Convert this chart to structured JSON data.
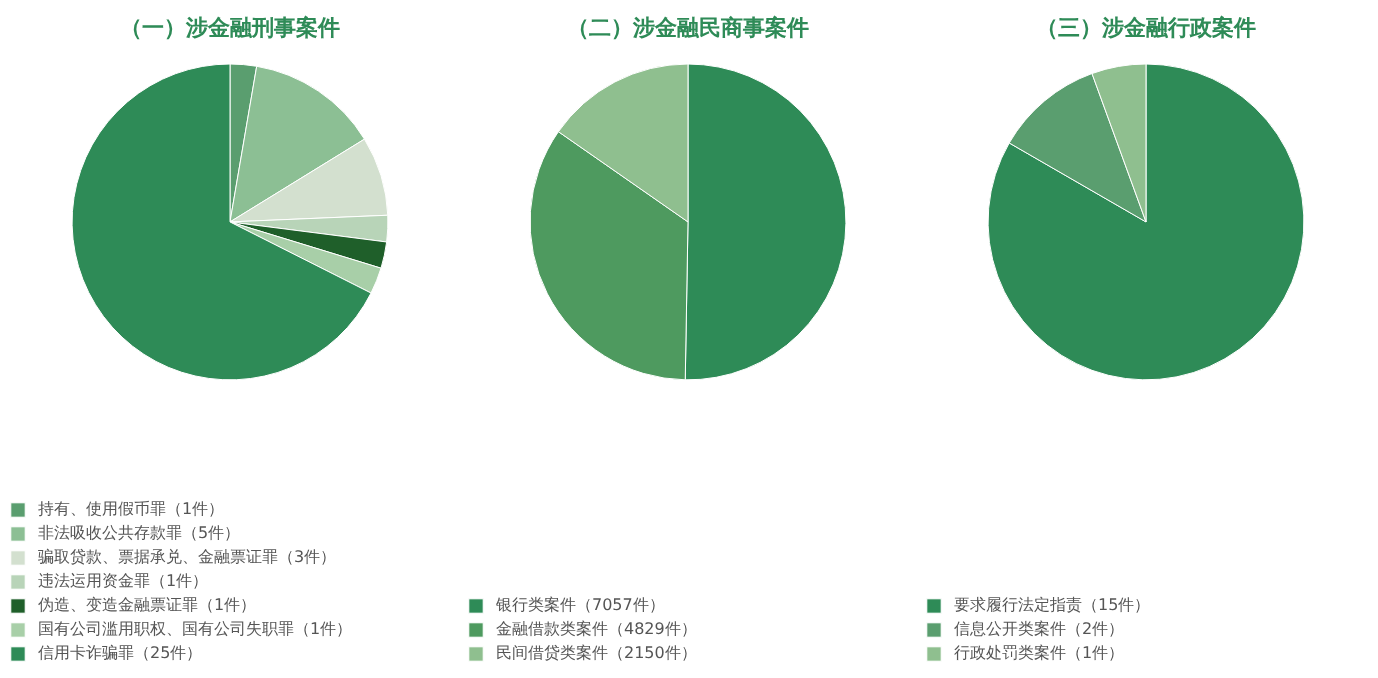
{
  "chart_data": [
    {
      "type": "pie",
      "title": "（一）涉金融刑事案件",
      "legend": "bottom",
      "categories": [
        "持有、使用假币罪（1件）",
        "非法吸收公共存款罪（5件）",
        "骗取贷款、票据承兑、金融票证罪（3件）",
        "违法运用资金罪（1件）",
        "伪造、变造金融票证罪（1件）",
        "国有公司滥用职权、国有公司失职罪（1件）",
        "信用卡诈骗罪（25件）"
      ],
      "values": [
        1,
        5,
        3,
        1,
        1,
        1,
        25
      ],
      "colors": [
        "#5a9e6f",
        "#8cbf94",
        "#d3e0cf",
        "#b8d4b8",
        "#1f5f2a",
        "#a8cfa8",
        "#2e8b57"
      ]
    },
    {
      "type": "pie",
      "title": "（二）涉金融民商事案件",
      "legend": "bottom",
      "categories": [
        "银行类案件（7057件）",
        "金融借款类案件（4829件）",
        "民间借贷类案件（2150件）"
      ],
      "values": [
        7057,
        4829,
        2150
      ],
      "colors": [
        "#2e8b57",
        "#4e9a5f",
        "#8fbf8f"
      ]
    },
    {
      "type": "pie",
      "title": "（三）涉金融行政案件",
      "legend": "bottom",
      "categories": [
        "要求履行法定指责（15件）",
        "信息公开类案件（2件）",
        "行政处罚类案件（1件）"
      ],
      "values": [
        15,
        2,
        1
      ],
      "colors": [
        "#2e8b57",
        "#5a9e6f",
        "#8fbf8f"
      ]
    }
  ]
}
